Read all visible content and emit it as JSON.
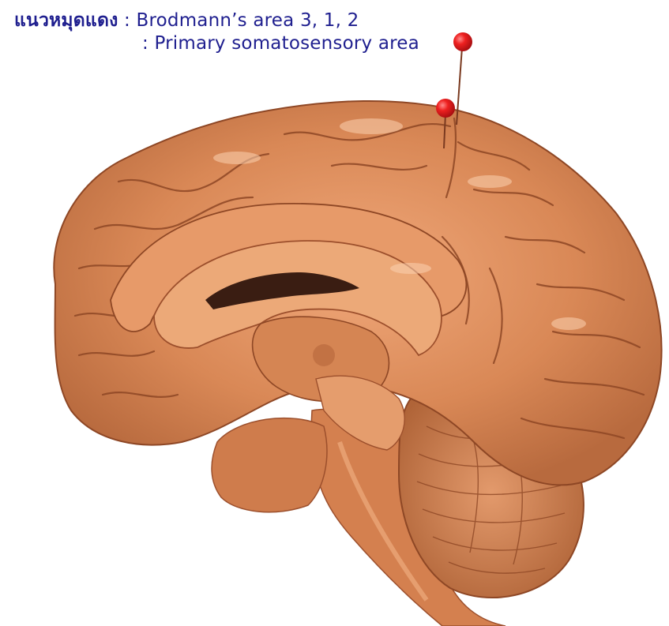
{
  "caption": {
    "label_thai": "แนวหมุดแดง",
    "line1_value": ": Brodmann’s area 3, 1, 2",
    "line2_value": ": Primary somatosensory area"
  },
  "colors": {
    "caption_text": "#1f1f8f",
    "tissue_base": "#d9875a",
    "tissue_light": "#f2b286",
    "tissue_dark": "#9c4f2c",
    "pin_head": "#e0161b",
    "background": "#ffffff"
  },
  "image": {
    "subject": "brain-specimen-photo",
    "markers": [
      "pin-marker",
      "pin-marker"
    ]
  }
}
